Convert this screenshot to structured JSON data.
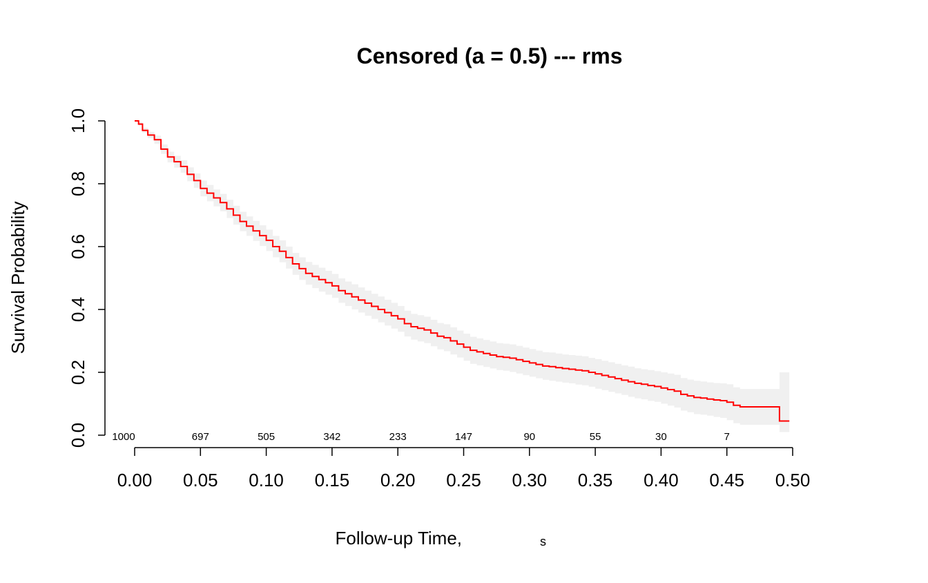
{
  "chart_data": {
    "type": "line",
    "title": "Censored (a = 0.5) --- rms",
    "xlabel": "Follow-up Time,",
    "xlabel_unit": "s",
    "ylabel": "Survival Probability",
    "xlim": [
      0.0,
      0.5
    ],
    "ylim": [
      0.0,
      1.0
    ],
    "x_ticks": [
      "0.00",
      "0.05",
      "0.10",
      "0.15",
      "0.20",
      "0.25",
      "0.30",
      "0.35",
      "0.40",
      "0.45",
      "0.50"
    ],
    "y_ticks": [
      "0.0",
      "0.2",
      "0.4",
      "0.6",
      "0.8",
      "1.0"
    ],
    "grid": false,
    "legend": "none",
    "line_color": "#ff0000",
    "band_color": "#f0f0f0",
    "number_at_risk": {
      "x": [
        0.0,
        0.05,
        0.1,
        0.15,
        0.2,
        0.25,
        0.3,
        0.35,
        0.4,
        0.45
      ],
      "values": [
        "1000",
        "697",
        "505",
        "342",
        "233",
        "147",
        "90",
        "55",
        "30",
        "7"
      ]
    },
    "series": [
      {
        "x": [
          0.0,
          0.003,
          0.006,
          0.01,
          0.015,
          0.02,
          0.025,
          0.03,
          0.035,
          0.04,
          0.045,
          0.05,
          0.055,
          0.06,
          0.065,
          0.07,
          0.075,
          0.08,
          0.085,
          0.09,
          0.095,
          0.1,
          0.105,
          0.11,
          0.115,
          0.12,
          0.125,
          0.13,
          0.135,
          0.14,
          0.145,
          0.15,
          0.155,
          0.16,
          0.165,
          0.17,
          0.175,
          0.18,
          0.185,
          0.19,
          0.195,
          0.2,
          0.205,
          0.21,
          0.215,
          0.22,
          0.225,
          0.23,
          0.235,
          0.24,
          0.245,
          0.25,
          0.255,
          0.26,
          0.265,
          0.27,
          0.275,
          0.28,
          0.285,
          0.29,
          0.295,
          0.3,
          0.305,
          0.31,
          0.315,
          0.32,
          0.325,
          0.33,
          0.335,
          0.34,
          0.345,
          0.35,
          0.355,
          0.36,
          0.365,
          0.37,
          0.375,
          0.38,
          0.385,
          0.39,
          0.395,
          0.4,
          0.405,
          0.41,
          0.415,
          0.42,
          0.425,
          0.43,
          0.435,
          0.44,
          0.445,
          0.45,
          0.455,
          0.46,
          0.465,
          0.47,
          0.475,
          0.48,
          0.485,
          0.49,
          0.495
        ],
        "y": [
          1.0,
          0.99,
          0.97,
          0.955,
          0.94,
          0.91,
          0.885,
          0.87,
          0.855,
          0.83,
          0.81,
          0.785,
          0.77,
          0.755,
          0.74,
          0.72,
          0.7,
          0.68,
          0.665,
          0.65,
          0.635,
          0.62,
          0.6,
          0.585,
          0.565,
          0.545,
          0.53,
          0.515,
          0.505,
          0.495,
          0.485,
          0.475,
          0.46,
          0.45,
          0.44,
          0.43,
          0.42,
          0.41,
          0.4,
          0.39,
          0.38,
          0.37,
          0.355,
          0.345,
          0.34,
          0.335,
          0.325,
          0.315,
          0.31,
          0.3,
          0.29,
          0.28,
          0.27,
          0.265,
          0.26,
          0.255,
          0.25,
          0.248,
          0.245,
          0.24,
          0.235,
          0.23,
          0.225,
          0.22,
          0.218,
          0.215,
          0.212,
          0.21,
          0.207,
          0.205,
          0.2,
          0.195,
          0.19,
          0.185,
          0.18,
          0.175,
          0.17,
          0.165,
          0.162,
          0.158,
          0.155,
          0.15,
          0.145,
          0.14,
          0.13,
          0.125,
          0.12,
          0.118,
          0.115,
          0.112,
          0.11,
          0.105,
          0.095,
          0.09,
          0.09,
          0.09,
          0.09,
          0.09,
          0.09,
          0.045,
          0.045
        ],
        "lower": [
          1.0,
          0.985,
          0.962,
          0.945,
          0.927,
          0.895,
          0.868,
          0.851,
          0.835,
          0.808,
          0.787,
          0.76,
          0.744,
          0.728,
          0.712,
          0.691,
          0.67,
          0.649,
          0.634,
          0.618,
          0.602,
          0.586,
          0.566,
          0.55,
          0.53,
          0.51,
          0.494,
          0.479,
          0.468,
          0.457,
          0.447,
          0.437,
          0.421,
          0.411,
          0.4,
          0.39,
          0.38,
          0.37,
          0.359,
          0.349,
          0.339,
          0.329,
          0.314,
          0.304,
          0.298,
          0.293,
          0.283,
          0.273,
          0.267,
          0.257,
          0.247,
          0.237,
          0.227,
          0.222,
          0.217,
          0.212,
          0.207,
          0.205,
          0.201,
          0.196,
          0.191,
          0.186,
          0.181,
          0.176,
          0.173,
          0.17,
          0.167,
          0.165,
          0.161,
          0.159,
          0.154,
          0.148,
          0.143,
          0.138,
          0.133,
          0.128,
          0.122,
          0.117,
          0.114,
          0.109,
          0.106,
          0.1,
          0.094,
          0.088,
          0.078,
          0.073,
          0.067,
          0.065,
          0.062,
          0.058,
          0.055,
          0.048,
          0.038,
          0.033,
          0.033,
          0.033,
          0.033,
          0.033,
          0.033,
          0.01,
          0.01
        ],
        "upper": [
          1.0,
          0.995,
          0.978,
          0.965,
          0.953,
          0.925,
          0.902,
          0.889,
          0.875,
          0.852,
          0.833,
          0.81,
          0.796,
          0.782,
          0.768,
          0.749,
          0.73,
          0.711,
          0.696,
          0.682,
          0.668,
          0.654,
          0.634,
          0.62,
          0.6,
          0.58,
          0.566,
          0.551,
          0.542,
          0.533,
          0.523,
          0.513,
          0.499,
          0.489,
          0.48,
          0.47,
          0.46,
          0.45,
          0.441,
          0.431,
          0.421,
          0.411,
          0.396,
          0.386,
          0.382,
          0.377,
          0.367,
          0.357,
          0.353,
          0.343,
          0.333,
          0.323,
          0.313,
          0.308,
          0.303,
          0.298,
          0.293,
          0.291,
          0.289,
          0.284,
          0.279,
          0.274,
          0.269,
          0.264,
          0.263,
          0.26,
          0.257,
          0.255,
          0.253,
          0.251,
          0.246,
          0.242,
          0.237,
          0.232,
          0.227,
          0.222,
          0.218,
          0.213,
          0.21,
          0.207,
          0.204,
          0.2,
          0.196,
          0.192,
          0.182,
          0.177,
          0.173,
          0.171,
          0.168,
          0.166,
          0.165,
          0.162,
          0.152,
          0.147,
          0.147,
          0.147,
          0.147,
          0.147,
          0.147,
          0.2,
          0.2
        ]
      }
    ]
  }
}
